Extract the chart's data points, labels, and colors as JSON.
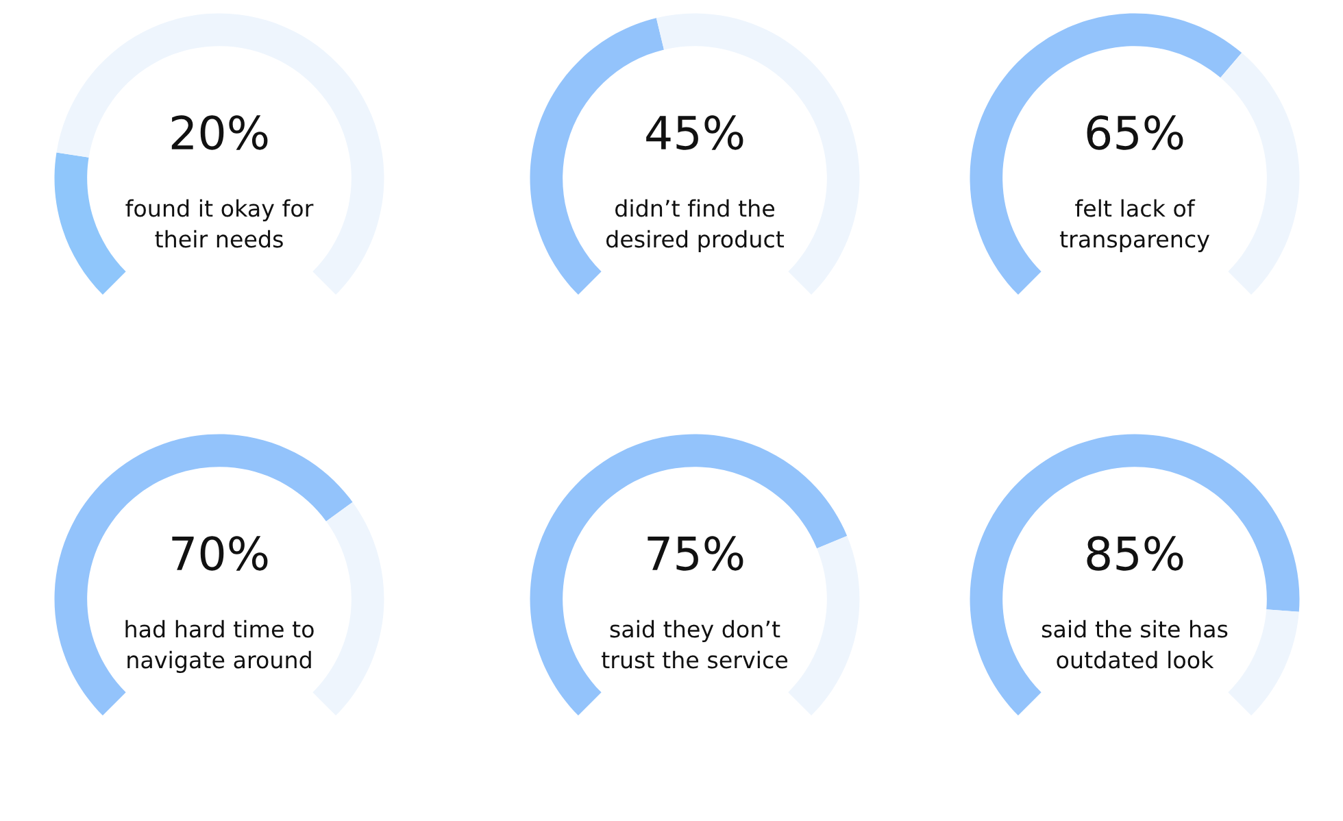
{
  "chart_data": [
    {
      "type": "donut",
      "categories": [
        null,
        null
      ],
      "values": [
        20,
        80
      ],
      "colors": [
        "#8fc6fb",
        "#eef5fd"
      ],
      "title": "20%",
      "subtitle": "found it okay for\ntheir needs"
    },
    {
      "type": "donut",
      "categories": [
        null,
        null
      ],
      "values": [
        45,
        55
      ],
      "colors": [
        "#93c3fb",
        "#eef5fd"
      ],
      "title": "45%",
      "subtitle": "didn’t find the\ndesired product"
    },
    {
      "type": "donut",
      "categories": [
        null,
        null
      ],
      "values": [
        65,
        35
      ],
      "colors": [
        "#93c3fb",
        "#eef5fd"
      ],
      "title": "65%",
      "subtitle": "felt lack of\ntransparency"
    },
    {
      "type": "donut",
      "categories": [
        null,
        null
      ],
      "values": [
        70,
        30
      ],
      "colors": [
        "#93c3fb",
        "#eef5fd"
      ],
      "title": "70%",
      "subtitle": "had hard time to\nnavigate around"
    },
    {
      "type": "donut",
      "categories": [
        null,
        null
      ],
      "values": [
        75,
        25
      ],
      "colors": [
        "#93c3fb",
        "#eef5fd"
      ],
      "title": "75%",
      "subtitle": "said they don’t\ntrust the service"
    },
    {
      "type": "donut",
      "categories": [
        null,
        null
      ],
      "values": [
        85,
        15
      ],
      "colors": [
        "#93c3fb",
        "#eef5fd"
      ],
      "title": "85%",
      "subtitle": "said the site has\noutdated look"
    }
  ]
}
